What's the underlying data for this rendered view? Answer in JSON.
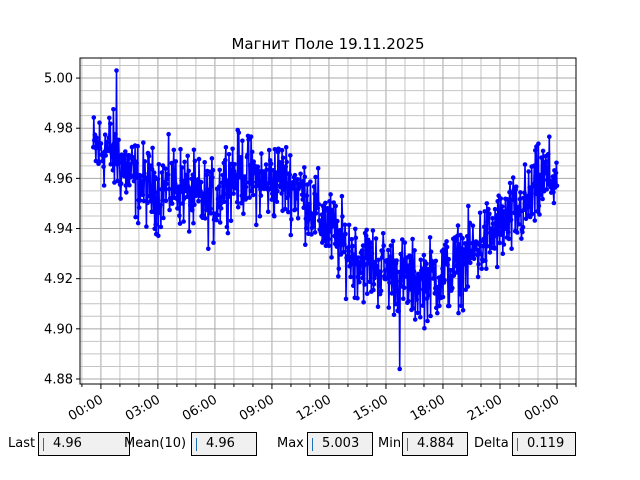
{
  "chart_data": {
    "type": "line",
    "title": "Магнит Поле 19.11.2025",
    "xlabel": "",
    "ylabel": "",
    "x_range_hours": [
      -1.1,
      25.0
    ],
    "ylim": [
      4.878,
      5.008
    ],
    "x_ticks": [
      {
        "hour": 0,
        "label": "00:00"
      },
      {
        "hour": 3,
        "label": "03:00"
      },
      {
        "hour": 6,
        "label": "06:00"
      },
      {
        "hour": 9,
        "label": "09:00"
      },
      {
        "hour": 12,
        "label": "12:00"
      },
      {
        "hour": 15,
        "label": "15:00"
      },
      {
        "hour": 18,
        "label": "18:00"
      },
      {
        "hour": 21,
        "label": "21:00"
      },
      {
        "hour": 24,
        "label": "00:00"
      }
    ],
    "y_ticks": [
      4.88,
      4.9,
      4.92,
      4.94,
      4.96,
      4.98,
      5.0
    ],
    "grid": true,
    "series_color": "#0000ff",
    "trend": [
      {
        "hour": -0.4,
        "value": 4.971
      },
      {
        "hour": 0.5,
        "value": 4.972
      },
      {
        "hour": 1.0,
        "value": 4.966
      },
      {
        "hour": 2.0,
        "value": 4.958
      },
      {
        "hour": 3.0,
        "value": 4.955
      },
      {
        "hour": 4.0,
        "value": 4.958
      },
      {
        "hour": 5.0,
        "value": 4.952
      },
      {
        "hour": 6.0,
        "value": 4.95
      },
      {
        "hour": 6.5,
        "value": 4.96
      },
      {
        "hour": 7.5,
        "value": 4.962
      },
      {
        "hour": 8.5,
        "value": 4.958
      },
      {
        "hour": 9.5,
        "value": 4.96
      },
      {
        "hour": 10.5,
        "value": 4.955
      },
      {
        "hour": 11.5,
        "value": 4.945
      },
      {
        "hour": 12.5,
        "value": 4.935
      },
      {
        "hour": 13.5,
        "value": 4.928
      },
      {
        "hour": 14.5,
        "value": 4.925
      },
      {
        "hour": 15.5,
        "value": 4.922
      },
      {
        "hour": 16.5,
        "value": 4.918
      },
      {
        "hour": 17.5,
        "value": 4.92
      },
      {
        "hour": 18.5,
        "value": 4.923
      },
      {
        "hour": 19.5,
        "value": 4.93
      },
      {
        "hour": 20.5,
        "value": 4.937
      },
      {
        "hour": 21.5,
        "value": 4.943
      },
      {
        "hour": 22.5,
        "value": 4.95
      },
      {
        "hour": 23.3,
        "value": 4.96
      },
      {
        "hour": 24.0,
        "value": 4.96
      }
    ],
    "sample_count": 900,
    "noise_amplitude": 0.012,
    "marker": "circle"
  },
  "stats": {
    "last": {
      "label": "Last",
      "value": "4.96"
    },
    "mean": {
      "label": "Mean(10)",
      "value": "4.96"
    },
    "max": {
      "label": "Max",
      "value": "5.003"
    },
    "min": {
      "label": "Min",
      "value": "4.884"
    },
    "delta": {
      "label": "Delta",
      "value": "0.119"
    }
  }
}
